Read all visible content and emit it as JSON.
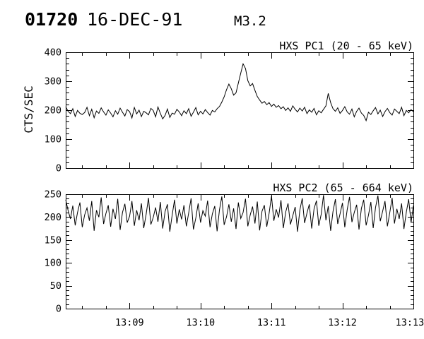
{
  "header": {
    "event_id": "01720",
    "date": "16-DEC-91",
    "flare_class": "M3.2"
  },
  "colors": {
    "foreground": "#000000",
    "background": "#ffffff"
  },
  "chart_data": [
    {
      "type": "line",
      "title": "HXS PC1 (20 - 65 keV)",
      "ylabel": "CTS/SEC",
      "ylim": [
        0,
        400
      ],
      "y_major_ticks": [
        0,
        100,
        200,
        300,
        400
      ],
      "y_minor_step": 20,
      "xlim_seconds": [
        0,
        294
      ],
      "x_major_ticks": [
        {
          "t": 54,
          "label": "13:09"
        },
        {
          "t": 114,
          "label": "13:10"
        },
        {
          "t": 174,
          "label": "13:11"
        },
        {
          "t": 234,
          "label": "13:12"
        },
        {
          "t": 294,
          "label": "13:13"
        }
      ],
      "x_minor_start": 14,
      "x_minor_step": 20,
      "x_tick_labels_visible": false,
      "dt_seconds": 2,
      "values": [
        212,
        196,
        188,
        205,
        178,
        199,
        189,
        185,
        192,
        210,
        181,
        203,
        174,
        197,
        189,
        208,
        194,
        183,
        201,
        190,
        177,
        198,
        186,
        207,
        193,
        180,
        202,
        195,
        173,
        209,
        187,
        200,
        178,
        196,
        191,
        184,
        206,
        199,
        177,
        211,
        189,
        170,
        182,
        204,
        175,
        190,
        186,
        203,
        194,
        181,
        198,
        188,
        205,
        179,
        193,
        209,
        184,
        196,
        187,
        202,
        192,
        183,
        199,
        194,
        205,
        213,
        228,
        246,
        271,
        290,
        274,
        252,
        260,
        294,
        328,
        360,
        344,
        302,
        284,
        292,
        268,
        247,
        235,
        224,
        230,
        219,
        226,
        213,
        221,
        210,
        216,
        205,
        212,
        199,
        208,
        196,
        215,
        203,
        194,
        207,
        197,
        210,
        188,
        201,
        193,
        206,
        184,
        198,
        191,
        203,
        215,
        258,
        226,
        205,
        196,
        208,
        189,
        199,
        212,
        194,
        186,
        204,
        177,
        196,
        207,
        190,
        182,
        164,
        193,
        185,
        198,
        209,
        187,
        200,
        178,
        195,
        206,
        192,
        183,
        204,
        196,
        188,
        210,
        181,
        199,
        191,
        202,
        195
      ]
    },
    {
      "type": "line",
      "title": "HXS PC2 (65 - 664 keV)",
      "ylabel": "",
      "ylim": [
        0,
        250
      ],
      "y_major_ticks": [
        0,
        50,
        100,
        150,
        200,
        250
      ],
      "y_minor_step": 10,
      "xlim_seconds": [
        0,
        294
      ],
      "x_major_ticks": [
        {
          "t": 54,
          "label": "13:09"
        },
        {
          "t": 114,
          "label": "13:10"
        },
        {
          "t": 174,
          "label": "13:11"
        },
        {
          "t": 234,
          "label": "13:12"
        },
        {
          "t": 294,
          "label": "13:13"
        }
      ],
      "x_minor_start": 14,
      "x_minor_step": 20,
      "x_tick_labels_visible": true,
      "dt_seconds": 2,
      "values": [
        238,
        215,
        196,
        225,
        182,
        210,
        232,
        178,
        205,
        220,
        192,
        235,
        170,
        215,
        200,
        243,
        185,
        208,
        226,
        179,
        218,
        196,
        240,
        172,
        210,
        229,
        188,
        202,
        235,
        181,
        215,
        193,
        230,
        176,
        206,
        242,
        184,
        199,
        221,
        190,
        233,
        175,
        212,
        228,
        168,
        204,
        238,
        186,
        217,
        195,
        226,
        180,
        209,
        241,
        173,
        198,
        230,
        188,
        214,
        202,
        236,
        178,
        207,
        224,
        169,
        216,
        245,
        183,
        201,
        228,
        190,
        219,
        174,
        232,
        197,
        210,
        240,
        180,
        205,
        223,
        186,
        234,
        171,
        213,
        226,
        179,
        208,
        246,
        192,
        217,
        199,
        237,
        176,
        211,
        230,
        184,
        203,
        222,
        168,
        215,
        241,
        187,
        209,
        228,
        175,
        218,
        236,
        181,
        206,
        248,
        193,
        224,
        170,
        212,
        239,
        185,
        207,
        231,
        178,
        216,
        244,
        189,
        210,
        227,
        173,
        219,
        238,
        182,
        204,
        233,
        176,
        221,
        247,
        191,
        213,
        235,
        180,
        209,
        242,
        186,
        218,
        196,
        230,
        174,
        211,
        239,
        188,
        225
      ]
    }
  ]
}
